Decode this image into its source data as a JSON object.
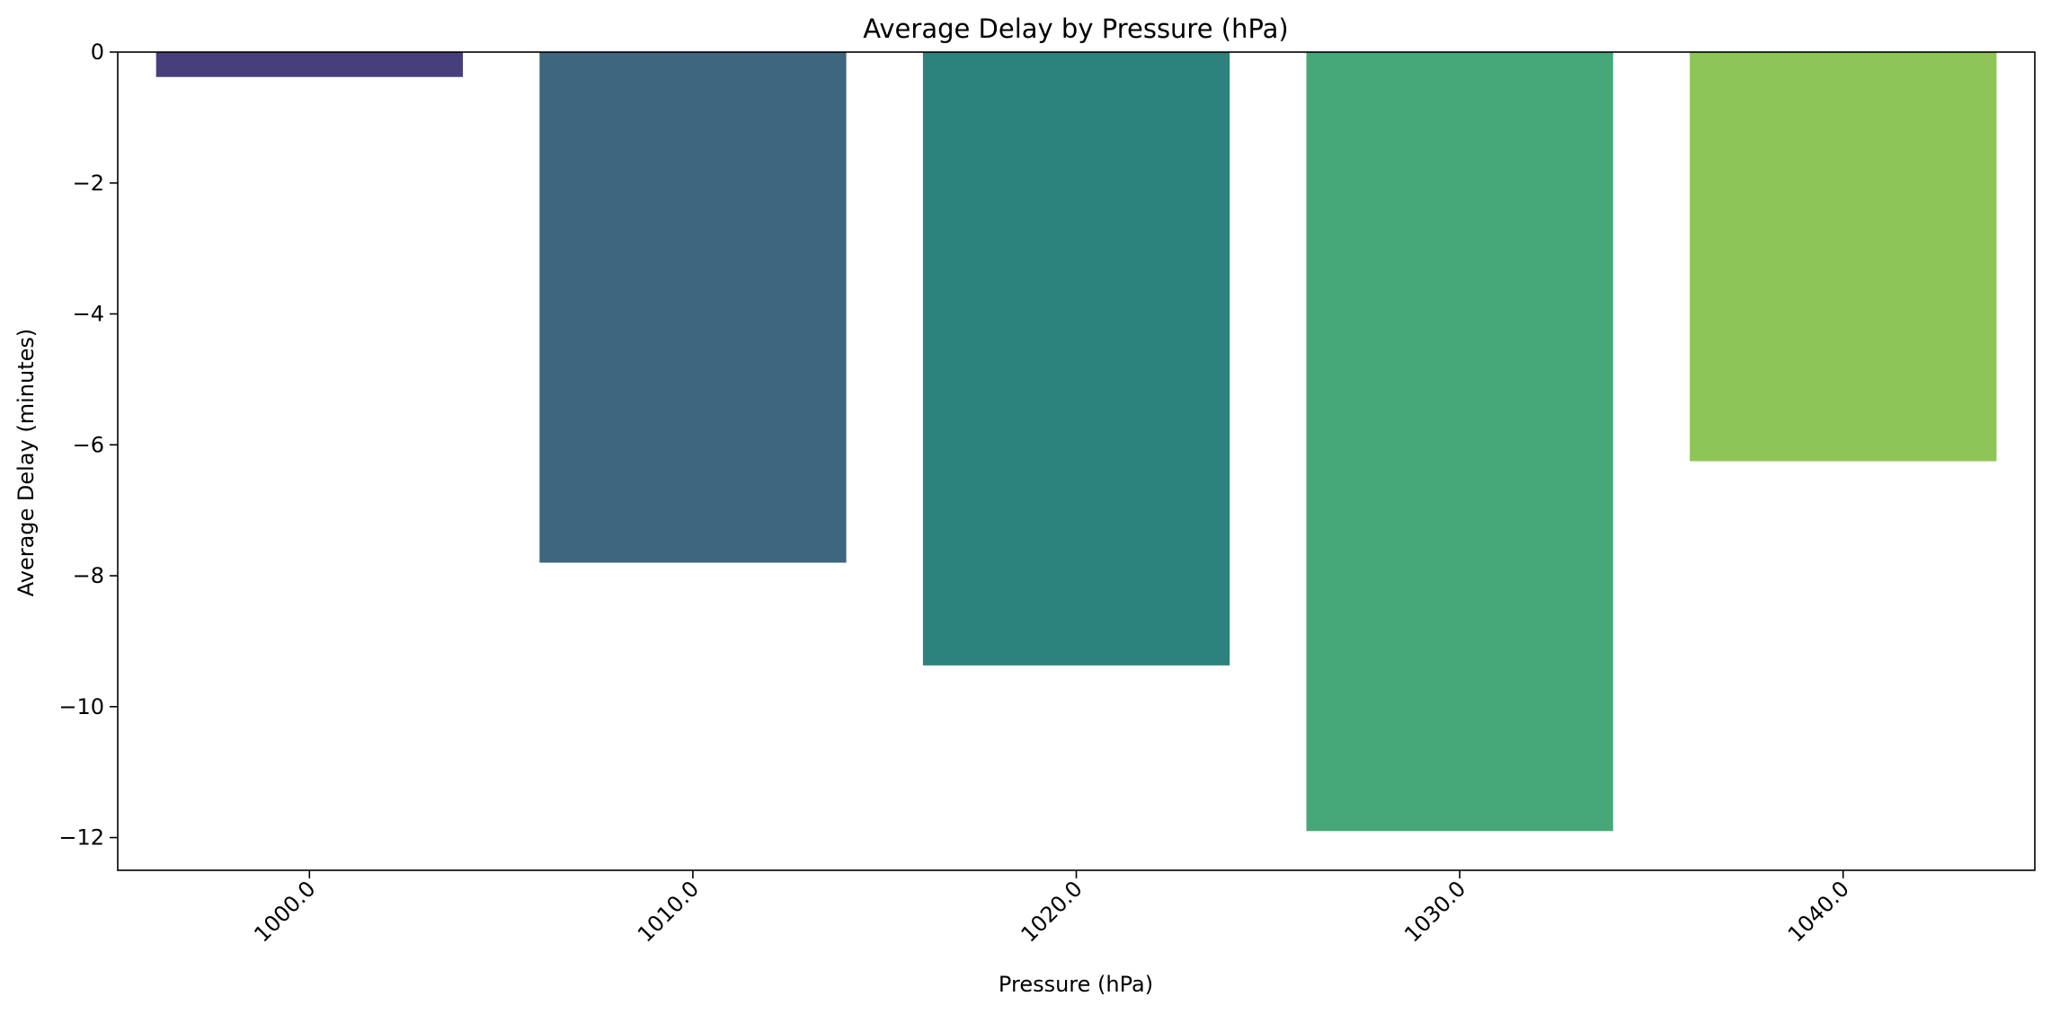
{
  "chart_data": {
    "type": "bar",
    "title": "Average Delay by Pressure (hPa)",
    "xlabel": "Pressure (hPa)",
    "ylabel": "Average Delay (minutes)",
    "categories": [
      "1000.0",
      "1010.0",
      "1020.0",
      "1030.0",
      "1040.0"
    ],
    "values": [
      -0.38,
      -7.8,
      -9.37,
      -11.9,
      -6.25
    ],
    "colors": [
      "#473f7c",
      "#3e667f",
      "#2e827d",
      "#46a878",
      "#8ec557"
    ],
    "ylim": [
      -12.5,
      0
    ],
    "yticks": [
      0,
      -2,
      -4,
      -6,
      -8,
      -10,
      -12
    ],
    "ytick_labels": [
      "0",
      "−2",
      "−4",
      "−6",
      "−8",
      "−10",
      "−12"
    ],
    "grid": false,
    "legend": "none"
  }
}
